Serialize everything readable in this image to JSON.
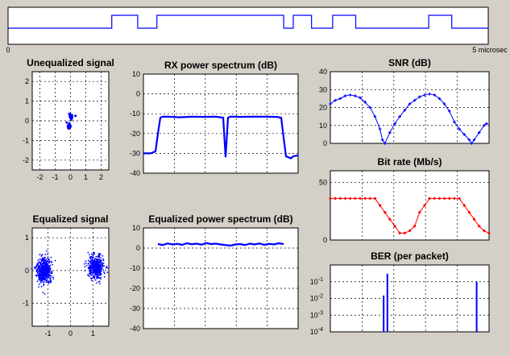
{
  "timeline": {
    "x_start_label": "0",
    "x_end_label": "5 microsec",
    "xlim": [
      0,
      5
    ],
    "segments": [
      [
        0,
        1.08,
        "low"
      ],
      [
        1.08,
        1.35,
        "high"
      ],
      [
        1.35,
        1.55,
        "low"
      ],
      [
        1.55,
        2.87,
        "high"
      ],
      [
        2.87,
        2.97,
        "low"
      ],
      [
        2.97,
        3.16,
        "high"
      ],
      [
        3.16,
        3.38,
        "low"
      ],
      [
        3.38,
        3.62,
        "high"
      ],
      [
        3.62,
        4.38,
        "low"
      ],
      [
        4.38,
        4.62,
        "high"
      ],
      [
        4.62,
        5.0,
        "low"
      ]
    ]
  },
  "colors": {
    "blue": "#0000ff",
    "red": "#ff0000",
    "axes_bg": "#ffffff",
    "figure_bg": "#d4d0c8"
  },
  "chart_data": [
    {
      "id": "unequalized",
      "type": "scatter",
      "title": "Unequalized signal",
      "xlim": [
        -2.5,
        2.5
      ],
      "ylim": [
        -2.5,
        2.5
      ],
      "xticks": [
        -2,
        -1,
        0,
        1,
        2
      ],
      "yticks": [
        -2,
        -1,
        0,
        1,
        2
      ],
      "grid": true,
      "color": "blue",
      "clusters": [
        {
          "x": 0.05,
          "y": 0.22,
          "spread": 0.07,
          "n": 25
        },
        {
          "x": -0.12,
          "y": -0.28,
          "spread": 0.06,
          "n": 15
        }
      ]
    },
    {
      "id": "equalized",
      "type": "scatter",
      "title": "Equalized signal",
      "xlim": [
        -1.7,
        1.7
      ],
      "ylim": [
        -1.7,
        1.3
      ],
      "xticks": [
        -1,
        0,
        1
      ],
      "yticks": [
        -1,
        0,
        1
      ],
      "grid": true,
      "color": "blue",
      "clusters": [
        {
          "x": -1.18,
          "y": 0.0,
          "spread": 0.17,
          "n": 500
        },
        {
          "x": 1.15,
          "y": 0.12,
          "spread": 0.16,
          "n": 500
        }
      ]
    },
    {
      "id": "rx_spectrum",
      "type": "line",
      "title": "RX power spectrum (dB)",
      "xlim": [
        0,
        64
      ],
      "ylim": [
        -40,
        10
      ],
      "yticks": [
        10,
        0,
        -10,
        -20,
        -30,
        -40
      ],
      "grid": true,
      "color": "blue",
      "x": [
        0,
        3,
        5,
        6,
        7,
        8,
        10,
        15,
        20,
        25,
        30,
        33,
        34,
        35,
        36,
        38,
        40,
        45,
        50,
        55,
        57,
        58,
        59,
        60,
        61,
        62,
        64
      ],
      "y": [
        -30,
        -30,
        -29,
        -20,
        -12,
        -11.5,
        -11.5,
        -11.8,
        -11.5,
        -11.6,
        -11.5,
        -12,
        -32,
        -12,
        -11.5,
        -11.5,
        -11.6,
        -11.5,
        -11.5,
        -11.6,
        -12,
        -22,
        -31.5,
        -32,
        -32.5,
        -31.5,
        -31
      ]
    },
    {
      "id": "eq_spectrum",
      "type": "line",
      "title": "Equalized power spectrum (dB)",
      "xlim": [
        0,
        64
      ],
      "ylim": [
        -40,
        10
      ],
      "yticks": [
        10,
        0,
        -10,
        -20,
        -30,
        -40
      ],
      "grid": true,
      "color": "blue",
      "x": [
        6,
        8,
        10,
        12,
        14,
        16,
        18,
        20,
        22,
        24,
        26,
        28,
        30,
        32,
        36,
        38,
        40,
        42,
        44,
        46,
        48,
        50,
        52,
        54,
        56,
        58
      ],
      "y": [
        2.0,
        1.5,
        2.3,
        1.8,
        2.1,
        1.6,
        2.4,
        1.9,
        2.2,
        1.7,
        2.5,
        2.0,
        2.2,
        1.8,
        1.2,
        1.8,
        2.0,
        1.5,
        2.2,
        1.8,
        2.3,
        1.6,
        2.1,
        1.8,
        2.4,
        2.0
      ]
    },
    {
      "id": "snr",
      "type": "line",
      "title": "SNR (dB)",
      "xlim": [
        0,
        64
      ],
      "ylim": [
        0,
        40
      ],
      "yticks": [
        0,
        10,
        20,
        30,
        40
      ],
      "grid": true,
      "color": "blue",
      "x": [
        0,
        2,
        4,
        6,
        8,
        10,
        12,
        14,
        16,
        18,
        20,
        21,
        22,
        24,
        26,
        28,
        30,
        32,
        34,
        36,
        38,
        40,
        42,
        44,
        46,
        48,
        50,
        52,
        54,
        56,
        57,
        58,
        60,
        62,
        63
      ],
      "y": [
        22,
        24,
        25,
        26.5,
        27,
        26.5,
        25.5,
        23,
        20,
        15,
        8,
        2,
        0,
        6,
        11,
        15,
        18.5,
        22,
        24,
        26,
        27,
        27.5,
        27,
        25,
        22,
        18,
        12,
        8,
        5,
        2,
        0,
        2,
        6,
        10,
        11
      ]
    },
    {
      "id": "bitrate",
      "type": "line",
      "title": "Bit rate (Mb/s)",
      "xlim": [
        0,
        64
      ],
      "ylim": [
        0,
        60
      ],
      "yticks": [
        0,
        50
      ],
      "grid": true,
      "color": "red",
      "x": [
        0,
        2,
        4,
        6,
        8,
        10,
        12,
        14,
        16,
        18,
        20,
        22,
        24,
        26,
        28,
        30,
        32,
        34,
        36,
        38,
        40,
        42,
        44,
        46,
        48,
        50,
        52,
        54,
        56,
        58,
        60,
        62,
        64
      ],
      "y": [
        36,
        36,
        36,
        36,
        36,
        36,
        36,
        36,
        36,
        36,
        30,
        24,
        18,
        12,
        6,
        6,
        8,
        12,
        24,
        30,
        36,
        36,
        36,
        36,
        36,
        36,
        36,
        30,
        24,
        18,
        12,
        8,
        6
      ]
    },
    {
      "id": "ber",
      "type": "bar",
      "title": "BER (per packet)",
      "xlim": [
        0,
        64
      ],
      "ylim_exp": [
        -4,
        0
      ],
      "ytick_exps": [
        -1,
        -2,
        -3,
        -4
      ],
      "ytick_base": "10",
      "grid": true,
      "color": "blue",
      "x": [
        21.5,
        23,
        59
      ],
      "values": [
        0.015,
        0.3,
        0.1
      ]
    }
  ]
}
